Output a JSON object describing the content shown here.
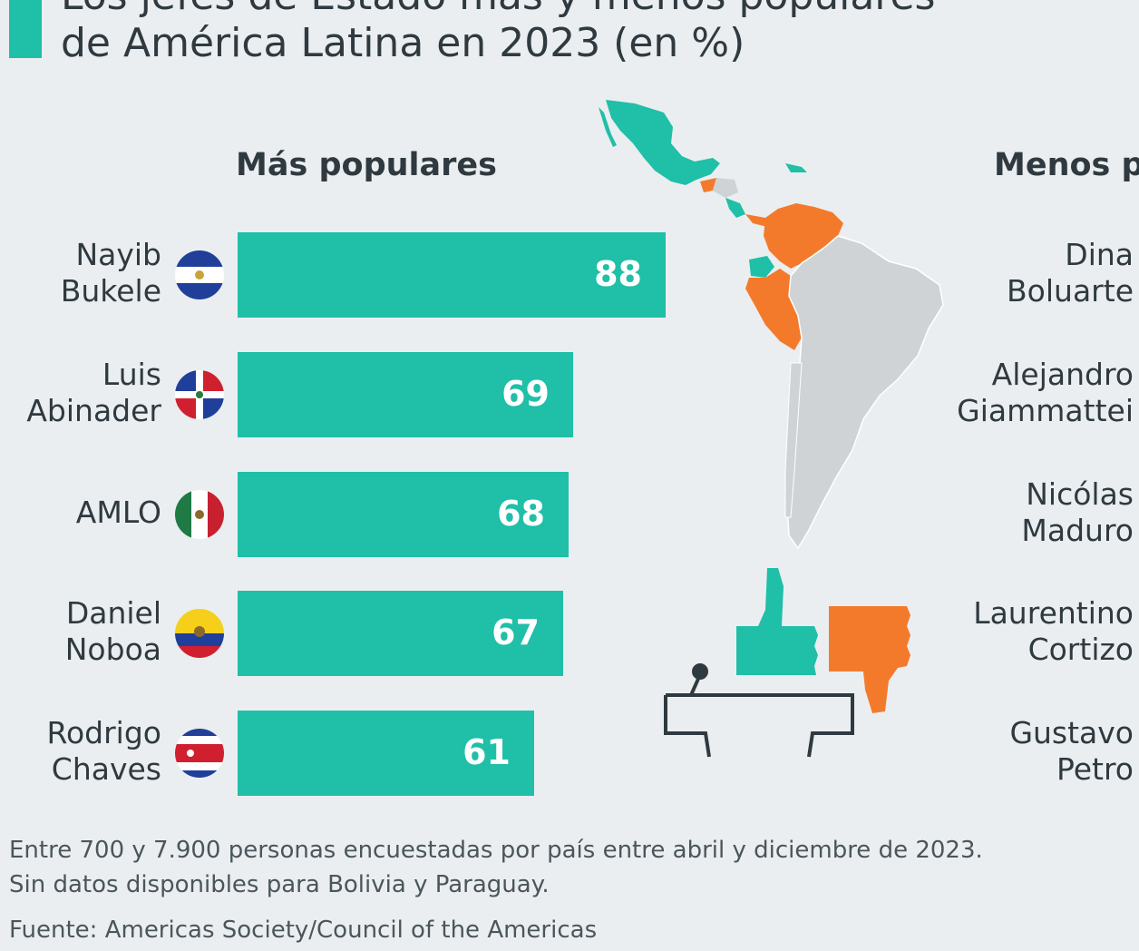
{
  "title": {
    "line1": "Los jefes de Estado más y menos populares",
    "line2": "de América Latina en 2023 (en %)"
  },
  "headers": {
    "left": "Más populares",
    "right": "Menos p"
  },
  "colors": {
    "accent": "#1fbfa8",
    "negative": "#f47a2b",
    "map_neutral": "#cfd3d6"
  },
  "chart_data": {
    "type": "bar",
    "orientation": "horizontal",
    "categories": [
      "Nayib\nBukele",
      "Luis\nAbinader",
      "AMLO",
      "Daniel\nNoboa",
      "Rodrigo\nChaves"
    ],
    "values": [
      88,
      69,
      68,
      67,
      61
    ],
    "xlim": [
      0,
      100
    ],
    "title": "Más populares",
    "flags": [
      "el-salvador-flag-icon",
      "dominican-republic-flag-icon",
      "mexico-flag-icon",
      "ecuador-flag-icon",
      "costa-rica-flag-icon"
    ]
  },
  "least_popular": {
    "names": [
      "Dina\nBoluarte",
      "Alejandro\nGiammattei",
      "Nicólas\nMaduro",
      "Laurentino\nCortizo",
      "Gustavo\nPetro"
    ]
  },
  "footer": {
    "note1": "Entre 700 y 7.900 personas encuestadas por país entre abril y diciembre de 2023.",
    "note2": "Sin datos disponibles para Bolivia y Paraguay.",
    "source": "Fuente: Americas Society/Council of the Americas"
  },
  "icons": [
    "latin-america-map-icon",
    "thumbs-up-icon",
    "thumbs-down-icon",
    "podium-icon"
  ]
}
